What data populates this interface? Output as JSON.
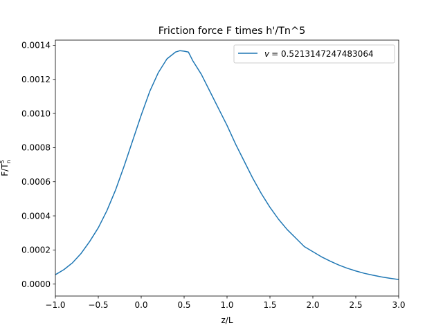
{
  "chart_data": {
    "type": "line",
    "title": "Friction force F times h'/Tn^5",
    "xlabel": "z/L",
    "ylabel": "F/T",
    "ylabel_superscript": "5",
    "ylabel_subscript": "n",
    "xlim": [
      -1.0,
      3.0
    ],
    "ylim": [
      -7e-05,
      0.00143
    ],
    "xticks": [
      -1.0,
      -0.5,
      0.0,
      0.5,
      1.0,
      1.5,
      2.0,
      2.5,
      3.0
    ],
    "xtick_labels": [
      "−1.0",
      "−0.5",
      "0.0",
      "0.5",
      "1.0",
      "1.5",
      "2.0",
      "2.5",
      "3.0"
    ],
    "yticks": [
      0.0,
      0.0002,
      0.0004,
      0.0006,
      0.0008,
      0.001,
      0.0012,
      0.0014
    ],
    "ytick_labels": [
      "0.0000",
      "0.0002",
      "0.0004",
      "0.0006",
      "0.0008",
      "0.0010",
      "0.0012",
      "0.0014"
    ],
    "grid": false,
    "legend_position": "top-right",
    "series": [
      {
        "name": "v",
        "legend_label": "= 0.5213147247483064",
        "color": "#1f77b4",
        "x": [
          -1.0,
          -0.9,
          -0.8,
          -0.7,
          -0.6,
          -0.5,
          -0.4,
          -0.3,
          -0.2,
          -0.1,
          0.0,
          0.1,
          0.2,
          0.3,
          0.4,
          0.45,
          0.5,
          0.55,
          0.6,
          0.7,
          0.8,
          0.9,
          1.0,
          1.1,
          1.2,
          1.3,
          1.4,
          1.5,
          1.6,
          1.7,
          1.8,
          1.9,
          2.0,
          2.1,
          2.2,
          2.3,
          2.4,
          2.5,
          2.6,
          2.7,
          2.8,
          2.9,
          3.0
        ],
        "y": [
          5.5e-05,
          8.5e-05,
          0.000125,
          0.00018,
          0.00025,
          0.00033,
          0.00043,
          0.00055,
          0.00069,
          0.00084,
          0.00099,
          0.00113,
          0.00124,
          0.00132,
          0.00136,
          0.001368,
          0.001365,
          0.00136,
          0.00131,
          0.00123,
          0.00113,
          0.00103,
          0.00093,
          0.00082,
          0.00072,
          0.00062,
          0.00053,
          0.00045,
          0.00038,
          0.00032,
          0.00027,
          0.00022,
          0.00019,
          0.00016,
          0.000135,
          0.000112,
          9.3e-05,
          7.7e-05,
          6.3e-05,
          5.2e-05,
          4.2e-05,
          3.4e-05,
          2.7e-05
        ]
      }
    ]
  }
}
